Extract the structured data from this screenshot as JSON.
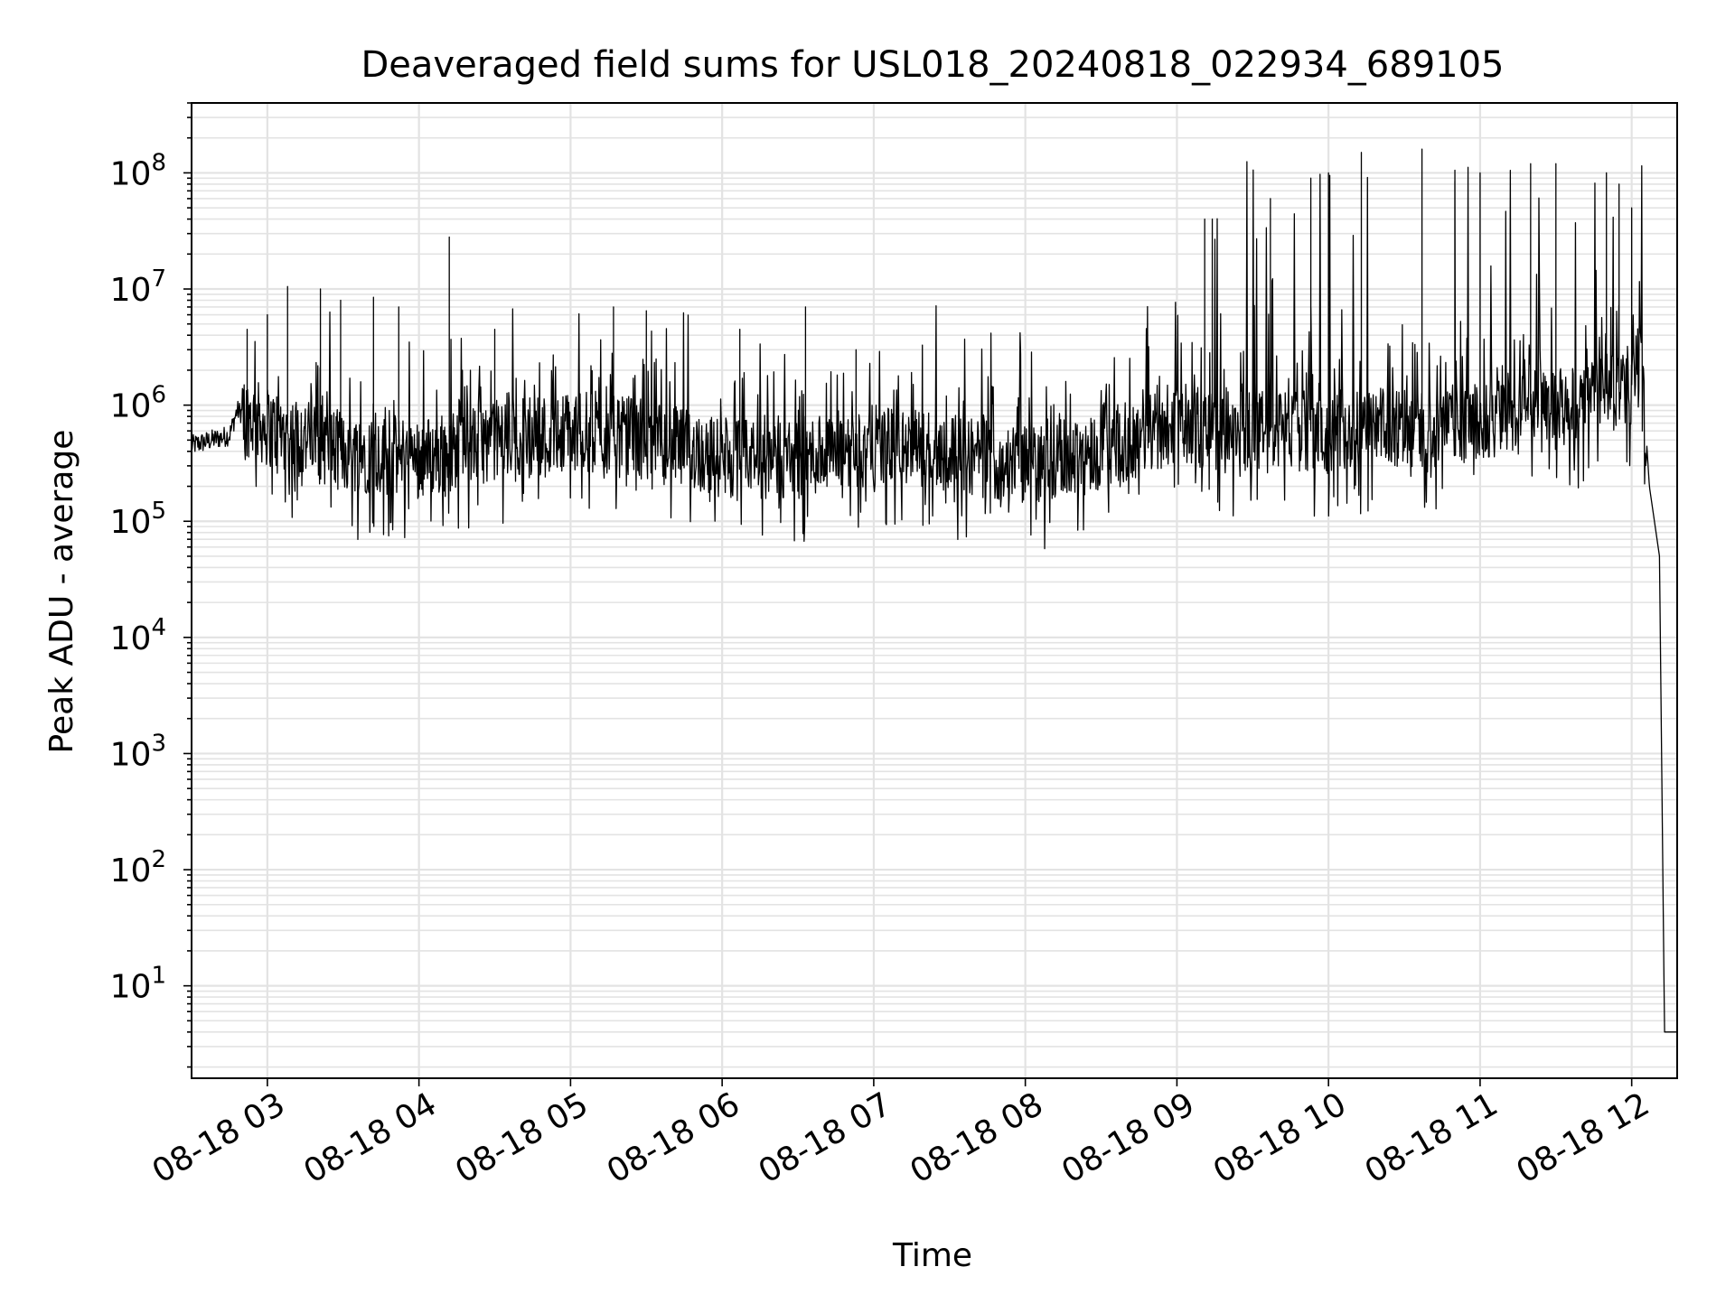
{
  "chart_data": {
    "type": "line",
    "title": "Deaveraged field sums for USL018_20240818_022934_689105",
    "xlabel": "Time",
    "ylabel": "Peak ADU - average",
    "yscale": "log",
    "xlim": [
      "2024-08-18T02:30",
      "2024-08-18T12:18"
    ],
    "ylim": [
      1.6,
      400000000
    ],
    "grid": "on (major and minor)",
    "colors": {
      "line": "#000000",
      "grid": "#e3e3e3",
      "axes": "#000000",
      "background": "#ffffff"
    },
    "x_ticks": [
      {
        "time": "2024-08-18T03:00",
        "label": "08-18 03"
      },
      {
        "time": "2024-08-18T04:00",
        "label": "08-18 04"
      },
      {
        "time": "2024-08-18T05:00",
        "label": "08-18 05"
      },
      {
        "time": "2024-08-18T06:00",
        "label": "08-18 06"
      },
      {
        "time": "2024-08-18T07:00",
        "label": "08-18 07"
      },
      {
        "time": "2024-08-18T08:00",
        "label": "08-18 08"
      },
      {
        "time": "2024-08-18T09:00",
        "label": "08-18 09"
      },
      {
        "time": "2024-08-18T10:00",
        "label": "08-18 10"
      },
      {
        "time": "2024-08-18T11:00",
        "label": "08-18 11"
      },
      {
        "time": "2024-08-18T12:00",
        "label": "08-18 12"
      }
    ],
    "y_ticks": [
      {
        "value": 10,
        "base": "10",
        "exp": "1"
      },
      {
        "value": 100,
        "base": "10",
        "exp": "2"
      },
      {
        "value": 1000,
        "base": "10",
        "exp": "3"
      },
      {
        "value": 10000,
        "base": "10",
        "exp": "4"
      },
      {
        "value": 100000,
        "base": "10",
        "exp": "5"
      },
      {
        "value": 1000000,
        "base": "10",
        "exp": "6"
      },
      {
        "value": 10000000,
        "base": "10",
        "exp": "7"
      },
      {
        "value": 100000000,
        "base": "10",
        "exp": "8"
      }
    ],
    "series": [
      {
        "baseline": [
          [
            "2024-08-18T02:30",
            450000
          ],
          [
            "2024-08-18T02:45",
            550000
          ],
          [
            "2024-08-18T02:48",
            900000
          ],
          [
            "2024-08-18T03:00",
            650000
          ],
          [
            "2024-08-18T03:30",
            400000
          ],
          [
            "2024-08-18T04:00",
            350000
          ],
          [
            "2024-08-18T04:30",
            500000
          ],
          [
            "2024-08-18T05:00",
            600000
          ],
          [
            "2024-08-18T05:30",
            500000
          ],
          [
            "2024-08-18T06:00",
            350000
          ],
          [
            "2024-08-18T06:30",
            350000
          ],
          [
            "2024-08-18T07:00",
            450000
          ],
          [
            "2024-08-18T07:30",
            400000
          ],
          [
            "2024-08-18T08:00",
            300000
          ],
          [
            "2024-08-18T08:30",
            400000
          ],
          [
            "2024-08-18T09:00",
            700000
          ],
          [
            "2024-08-18T09:30",
            600000
          ],
          [
            "2024-08-18T10:00",
            600000
          ],
          [
            "2024-08-18T10:30",
            650000
          ],
          [
            "2024-08-18T11:00",
            700000
          ],
          [
            "2024-08-18T11:30",
            900000
          ],
          [
            "2024-08-18T12:00",
            1500000
          ],
          [
            "2024-08-18T12:04",
            2500000
          ],
          [
            "2024-08-18T12:05",
            1000000
          ],
          [
            "2024-08-18T12:07",
            200000
          ],
          [
            "2024-08-18T12:11",
            50000
          ],
          [
            "2024-08-18T12:13",
            4
          ],
          [
            "2024-08-18T12:18",
            4
          ]
        ],
        "peaks": [
          [
            "2024-08-18T02:52",
            4500000
          ],
          [
            "2024-08-18T03:00",
            6000000
          ],
          [
            "2024-08-18T03:08",
            10500000
          ],
          [
            "2024-08-18T03:21",
            10000000
          ],
          [
            "2024-08-18T03:29",
            8000000
          ],
          [
            "2024-08-18T03:42",
            8500000
          ],
          [
            "2024-08-18T03:52",
            7000000
          ],
          [
            "2024-08-18T04:12",
            28000000
          ],
          [
            "2024-08-18T04:30",
            4500000
          ],
          [
            "2024-08-18T05:17",
            7000000
          ],
          [
            "2024-08-18T05:30",
            6500000
          ],
          [
            "2024-08-18T06:07",
            4500000
          ],
          [
            "2024-08-18T06:33",
            7000000
          ],
          [
            "2024-08-18T06:53",
            3000000
          ],
          [
            "2024-08-18T09:11",
            40000000
          ],
          [
            "2024-08-18T09:14",
            40000000
          ],
          [
            "2024-08-18T09:37",
            60000000
          ],
          [
            "2024-08-18T09:53",
            90000000
          ],
          [
            "2024-08-18T10:00",
            100000000
          ],
          [
            "2024-08-18T10:13",
            150000000
          ],
          [
            "2024-08-18T10:37",
            160000000
          ],
          [
            "2024-08-18T10:50",
            85000000
          ],
          [
            "2024-08-18T11:00",
            100000000
          ],
          [
            "2024-08-18T11:20",
            120000000
          ],
          [
            "2024-08-18T11:30",
            120000000
          ],
          [
            "2024-08-18T11:50",
            100000000
          ],
          [
            "2024-08-18T11:55",
            80000000
          ],
          [
            "2024-08-18T12:00",
            50000000
          ]
        ]
      }
    ]
  }
}
